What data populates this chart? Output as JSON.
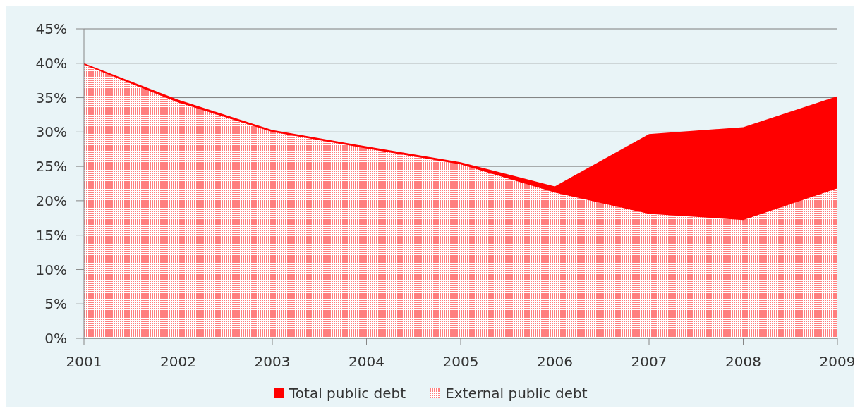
{
  "chart_data": {
    "type": "area",
    "categories": [
      "2001",
      "2002",
      "2003",
      "2004",
      "2005",
      "2006",
      "2007",
      "2008",
      "2009"
    ],
    "series": [
      {
        "name": "Total public debt",
        "color": "#ff0000",
        "values": [
          40,
          34.7,
          30.3,
          27.9,
          25.6,
          22.1,
          29.7,
          30.7,
          35.2
        ]
      },
      {
        "name": "External public debt",
        "color": "#ff7f7f",
        "values": [
          39.8,
          34.3,
          30.0,
          27.6,
          25.3,
          21.2,
          18.1,
          17.2,
          21.8
        ]
      }
    ],
    "ylim": [
      0,
      45
    ],
    "yticks": [
      {
        "value": 0,
        "label": "0%"
      },
      {
        "value": 5,
        "label": "5%"
      },
      {
        "value": 10,
        "label": "10%"
      },
      {
        "value": 15,
        "label": "15%"
      },
      {
        "value": 20,
        "label": "20%"
      },
      {
        "value": 25,
        "label": "25%"
      },
      {
        "value": 30,
        "label": "30%"
      },
      {
        "value": 35,
        "label": "35%"
      },
      {
        "value": 40,
        "label": "40%"
      },
      {
        "value": 45,
        "label": "45%"
      }
    ],
    "grid": "y",
    "legend": "bottom"
  }
}
